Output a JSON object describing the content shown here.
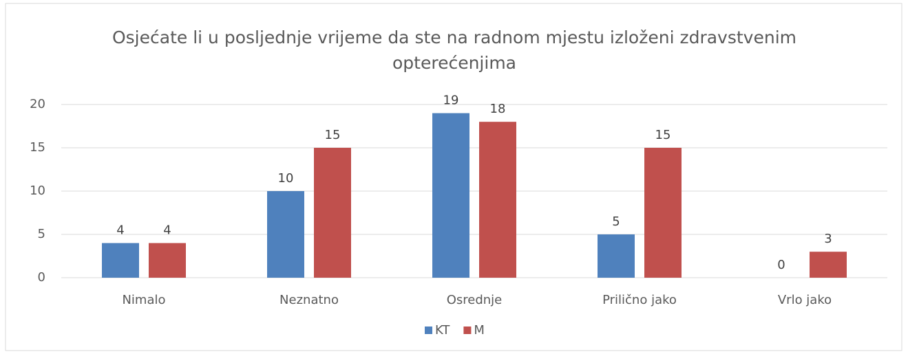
{
  "chart_data": {
    "type": "bar",
    "title": "Osjećate li u posljednje vrijeme da ste na radnom mjestu izloženi zdravstvenim opterećenjima",
    "categories": [
      "Nimalo",
      "Neznatno",
      "Osrednje",
      "Prilično jako",
      "Vrlo jako"
    ],
    "series": [
      {
        "name": "KT",
        "color": "#4f81bd",
        "values": [
          4,
          10,
          19,
          5,
          0
        ]
      },
      {
        "name": "M",
        "color": "#c0504d",
        "values": [
          4,
          15,
          18,
          15,
          3
        ]
      }
    ],
    "ylim": [
      0,
      20
    ],
    "yticks": [
      0,
      5,
      10,
      15,
      20
    ],
    "grid": true,
    "legend": "bottom"
  }
}
